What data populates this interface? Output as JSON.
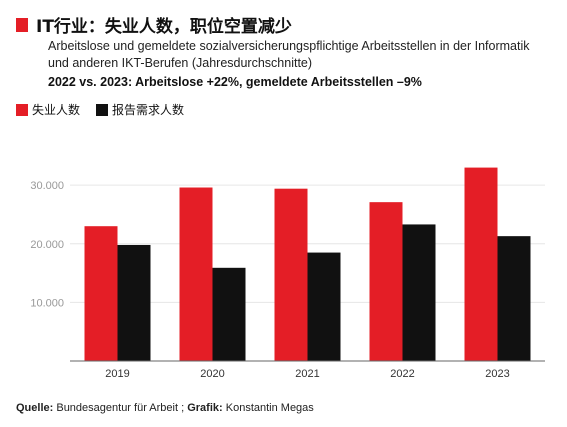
{
  "title": "IT行业：失业人数，职位空置减少",
  "subtitle": "Arbeitslose und gemeldete sozialversicherungspflichtige Arbeitsstellen in der Informatik und anderen IKT-Berufen (Jahresdurchschnitte)",
  "subtitle2": "2022 vs. 2023: Arbeitslose +22%, gemeldete Arbeitsstellen –9%",
  "source": {
    "label1": "Quelle:",
    "text1": " Bundesagentur für Arbeit ; ",
    "label2": "Grafik:",
    "text2": " Konstantin Megas"
  },
  "colors": {
    "accent": "#e41e26",
    "black": "#111111",
    "grid": "#e6e6e6"
  },
  "chart_data": {
    "type": "bar",
    "categories": [
      "2019",
      "2020",
      "2021",
      "2022",
      "2023"
    ],
    "series": [
      {
        "name": "失业人数",
        "color": "#e41e26",
        "values": [
          23000,
          29600,
          29400,
          27100,
          33000
        ]
      },
      {
        "name": "报告需求人数",
        "color": "#111111",
        "values": [
          19800,
          15900,
          18500,
          23300,
          21300
        ]
      }
    ],
    "ylim": [
      0,
      36000
    ],
    "yticks": [
      10000,
      20000,
      30000
    ],
    "ytick_labels": [
      "10.000",
      "20.000",
      "30.000"
    ],
    "grid": true,
    "legend": "top-left"
  }
}
